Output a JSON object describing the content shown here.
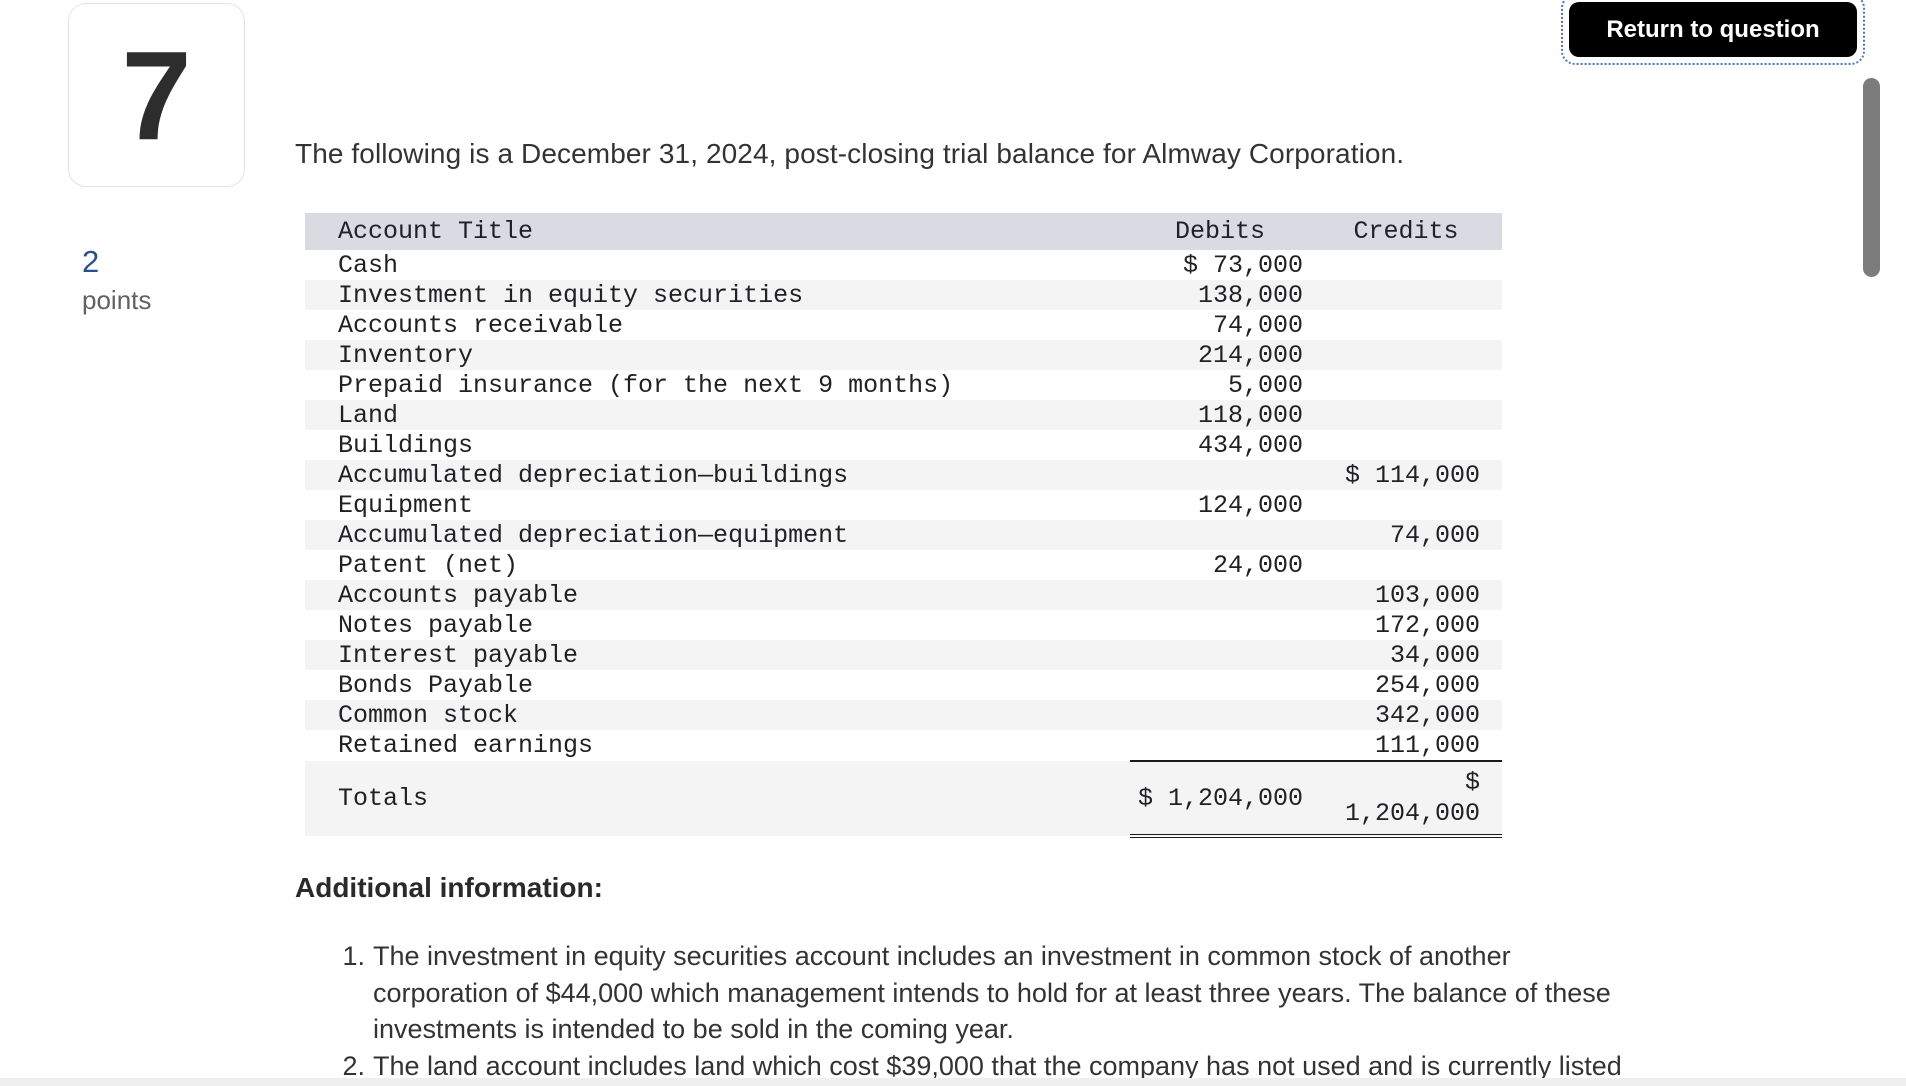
{
  "question": {
    "number": "7",
    "points_value": "2",
    "points_label": "points"
  },
  "return_button": {
    "label": "Return to question"
  },
  "intro": "The following is a December 31, 2024, post-closing trial balance for Almway Corporation.",
  "table": {
    "headers": {
      "account": "Account Title",
      "debits": "Debits",
      "credits": "Credits"
    },
    "rows": [
      {
        "account": "Cash",
        "debit": "$ 73,000",
        "credit": ""
      },
      {
        "account": "Investment in equity securities",
        "debit": "138,000",
        "credit": ""
      },
      {
        "account": "Accounts receivable",
        "debit": "74,000",
        "credit": ""
      },
      {
        "account": "Inventory",
        "debit": "214,000",
        "credit": ""
      },
      {
        "account": "Prepaid insurance (for the next 9 months)",
        "debit": "5,000",
        "credit": ""
      },
      {
        "account": "Land",
        "debit": "118,000",
        "credit": ""
      },
      {
        "account": "Buildings",
        "debit": "434,000",
        "credit": ""
      },
      {
        "account": "Accumulated depreciation—buildings",
        "debit": "",
        "credit": "$ 114,000"
      },
      {
        "account": "Equipment",
        "debit": "124,000",
        "credit": ""
      },
      {
        "account": "Accumulated depreciation—equipment",
        "debit": "",
        "credit": "74,000"
      },
      {
        "account": "Patent (net)",
        "debit": "24,000",
        "credit": ""
      },
      {
        "account": "Accounts payable",
        "debit": "",
        "credit": "103,000"
      },
      {
        "account": "Notes payable",
        "debit": "",
        "credit": "172,000"
      },
      {
        "account": "Interest payable",
        "debit": "",
        "credit": "34,000"
      },
      {
        "account": "Bonds Payable",
        "debit": "",
        "credit": "254,000"
      },
      {
        "account": "Common stock",
        "debit": "",
        "credit": "342,000"
      },
      {
        "account": "Retained earnings",
        "debit": "",
        "credit": "111,000"
      }
    ],
    "totals": {
      "label": "Totals",
      "debit": "$ 1,204,000",
      "credit": "$\n1,204,000"
    }
  },
  "additional": {
    "heading": "Additional information:",
    "items": [
      {
        "num": "1.",
        "text": "The investment in equity securities account includes an investment in common stock of another\ncorporation of $44,000 which management intends to hold for at least three years. The balance of these\ninvestments is intended to be sold in the coming year."
      },
      {
        "num": "2.",
        "text": "The land account includes land which cost $39,000 that the company has not used and is currently listed"
      }
    ]
  },
  "colors": {
    "accent_blue": "#26508E",
    "points_gray": "#616161",
    "button_bg": "#000000",
    "button_text": "#FFFFFF",
    "focus_ring": "#4D73CC",
    "table_header_bg": "#D8DBE2",
    "row_stripe_bg": "#F4F4F5",
    "rule_color": "#1A1A1A",
    "body_text": "#333333",
    "scrollbar": "#7C7C7C",
    "bottom_strip": "#EDEFF1"
  }
}
